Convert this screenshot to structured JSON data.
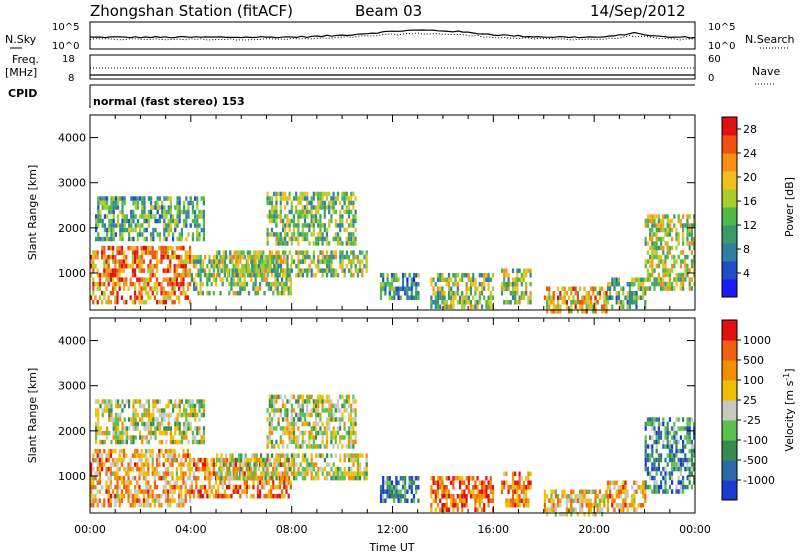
{
  "header": {
    "station": "Zhongshan Station (fitACF)",
    "beam": "Beam 03",
    "date": "14/Sep/2012"
  },
  "summary_panel": {
    "nsky_label": "N.Sky",
    "nsearch_label": "N.Search",
    "freq_label": "Freq.",
    "freq_unit": "[MHz]",
    "nave_label": "Nave",
    "cpid_label": "CPID",
    "cpid_text": "normal (fast stereo) 153",
    "left_ticks_noise": [
      "10^5",
      "10^0"
    ],
    "right_ticks_noise": [
      "10^5",
      "10^0"
    ],
    "left_ticks_freq": [
      "18",
      "8"
    ],
    "right_ticks_nave": [
      "60",
      "0"
    ]
  },
  "chart_data": [
    {
      "type": "heatmap",
      "title": "",
      "ylabel": "Slant Range [km]",
      "xlabel": "",
      "ylim": [
        180,
        4500
      ],
      "xlim": [
        0,
        24
      ],
      "yticks": [
        "1000",
        "2000",
        "3000",
        "4000"
      ],
      "colorbar": {
        "label": "Power [dB]",
        "range": [
          0,
          30
        ],
        "ticks": [
          "4",
          "8",
          "12",
          "16",
          "20",
          "24",
          "28"
        ],
        "colors": [
          "#1a1aff",
          "#1f4fc8",
          "#2e7fa0",
          "#3a9a6a",
          "#4fb848",
          "#a8cc2a",
          "#f0c020",
          "#f89018",
          "#f05010",
          "#e01010"
        ]
      },
      "echo_regions": [
        {
          "t": [
            0.0,
            4.0
          ],
          "r": [
            400,
            1600
          ],
          "level": 0.8
        },
        {
          "t": [
            4.0,
            8.0
          ],
          "r": [
            600,
            1400
          ],
          "level": 0.5
        },
        {
          "t": [
            0.2,
            4.5
          ],
          "r": [
            1800,
            2700
          ],
          "level": 0.35
        },
        {
          "t": [
            5.0,
            11.0
          ],
          "r": [
            1000,
            1500
          ],
          "level": 0.5
        },
        {
          "t": [
            7.0,
            10.5
          ],
          "r": [
            1700,
            2800
          ],
          "level": 0.45
        },
        {
          "t": [
            11.5,
            13.0
          ],
          "r": [
            500,
            1000
          ],
          "level": 0.3
        },
        {
          "t": [
            13.5,
            16.0
          ],
          "r": [
            300,
            1000
          ],
          "level": 0.5
        },
        {
          "t": [
            16.3,
            17.5
          ],
          "r": [
            400,
            1100
          ],
          "level": 0.5
        },
        {
          "t": [
            18.0,
            20.5
          ],
          "r": [
            200,
            700
          ],
          "level": 0.7
        },
        {
          "t": [
            20.5,
            22.0
          ],
          "r": [
            300,
            900
          ],
          "level": 0.4
        },
        {
          "t": [
            22.0,
            24.0
          ],
          "r": [
            700,
            2300
          ],
          "level": 0.55
        }
      ]
    },
    {
      "type": "heatmap",
      "title": "",
      "ylabel": "Slant Range [km]",
      "xlabel": "Time UT",
      "ylim": [
        180,
        4500
      ],
      "xlim": [
        0,
        24
      ],
      "yticks": [
        "1000",
        "2000",
        "3000",
        "4000"
      ],
      "xticks": [
        "00:00",
        "04:00",
        "08:00",
        "12:00",
        "16:00",
        "20:00",
        "00:00"
      ],
      "colorbar": {
        "label": "Velocity [m s^-1]",
        "ticks": [
          "1000",
          "500",
          "100",
          "25",
          "-25",
          "-100",
          "-500",
          "-1000"
        ],
        "colors": [
          "#1a3ad0",
          "#2a6aa8",
          "#3a8a50",
          "#5ac050",
          "#c8c8c0",
          "#f0c000",
          "#f09000",
          "#f06010",
          "#e01010"
        ]
      },
      "echo_regions": [
        {
          "t": [
            0.0,
            4.0
          ],
          "r": [
            400,
            1600
          ],
          "level": 0.7
        },
        {
          "t": [
            4.0,
            8.0
          ],
          "r": [
            600,
            1400
          ],
          "level": 0.8
        },
        {
          "t": [
            0.2,
            4.5
          ],
          "r": [
            1800,
            2700
          ],
          "level": 0.5
        },
        {
          "t": [
            5.0,
            11.0
          ],
          "r": [
            1000,
            1500
          ],
          "level": 0.5
        },
        {
          "t": [
            7.0,
            10.5
          ],
          "r": [
            1700,
            2800
          ],
          "level": 0.5
        },
        {
          "t": [
            11.5,
            13.0
          ],
          "r": [
            500,
            1000
          ],
          "level": 0.2
        },
        {
          "t": [
            13.5,
            16.0
          ],
          "r": [
            300,
            1000
          ],
          "level": 0.85
        },
        {
          "t": [
            16.3,
            17.5
          ],
          "r": [
            400,
            1100
          ],
          "level": 0.8
        },
        {
          "t": [
            18.0,
            20.5
          ],
          "r": [
            200,
            700
          ],
          "level": 0.6
        },
        {
          "t": [
            20.5,
            22.0
          ],
          "r": [
            300,
            900
          ],
          "level": 0.7
        },
        {
          "t": [
            22.0,
            24.0
          ],
          "r": [
            700,
            2300
          ],
          "level": 0.25
        }
      ]
    }
  ]
}
